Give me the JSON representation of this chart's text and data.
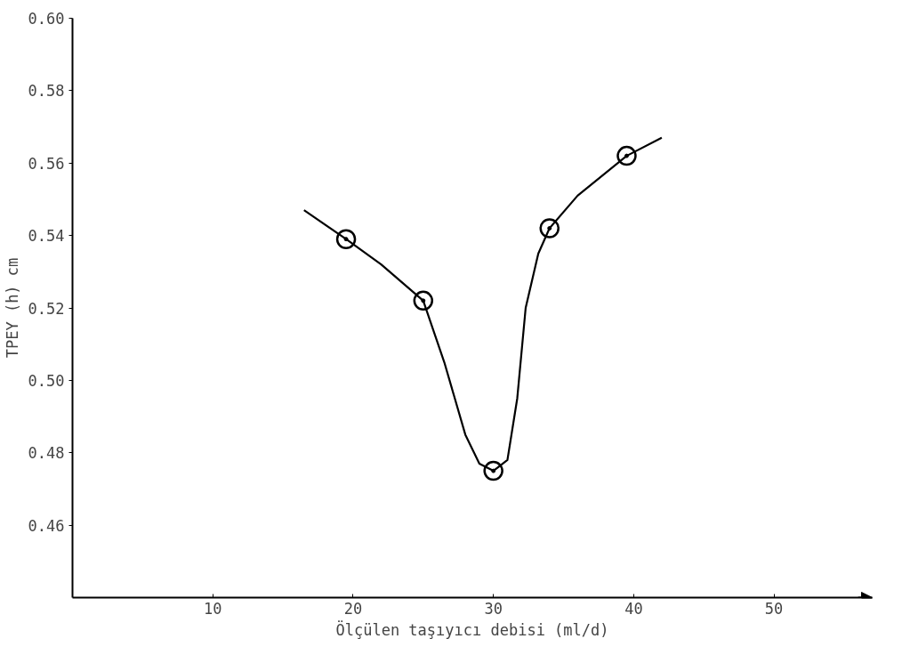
{
  "chart_data": {
    "type": "scatter",
    "xlabel": "Ölçülen taşıyıcı debisi (ml/d)",
    "ylabel": "TPEY (h) cm",
    "xlim": [
      0,
      57
    ],
    "ylim": [
      0.44,
      0.6
    ],
    "xticks": [
      10,
      20,
      30,
      40,
      50
    ],
    "yticks": [
      0.46,
      0.48,
      {
        "value": 0.5,
        "label": "0.50"
      },
      0.52,
      0.54,
      0.56,
      0.58,
      {
        "value": 0.6,
        "label": "0.60"
      }
    ],
    "grid": false,
    "marker": "circle",
    "series": [
      {
        "color": "#000000",
        "x": [
          19.5,
          25,
          30,
          34,
          39.5
        ],
        "values": [
          0.539,
          0.522,
          0.475,
          0.542,
          0.562
        ]
      },
      {
        "type": "line",
        "color": "#000000",
        "line_style": "solid",
        "marker": "none",
        "x": [
          16.5,
          19.5,
          22,
          25,
          26.5,
          28,
          29,
          30,
          31,
          31.7,
          32.3,
          33.2,
          34,
          36,
          39.5,
          42
        ],
        "values": [
          0.547,
          0.539,
          0.532,
          0.522,
          0.505,
          0.485,
          0.477,
          0.475,
          0.478,
          0.495,
          0.52,
          0.535,
          0.542,
          0.551,
          0.562,
          0.567
        ]
      }
    ]
  }
}
